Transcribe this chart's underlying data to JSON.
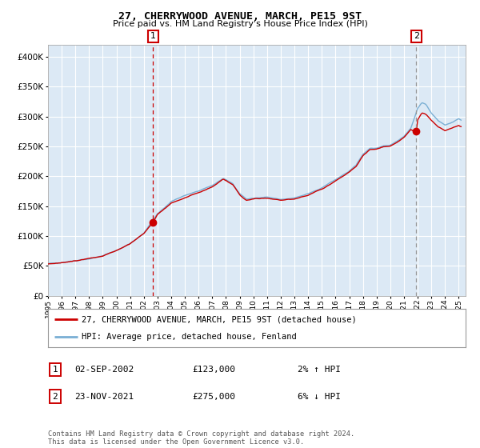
{
  "title": "27, CHERRYWOOD AVENUE, MARCH, PE15 9ST",
  "subtitle": "Price paid vs. HM Land Registry's House Price Index (HPI)",
  "legend_line1": "27, CHERRYWOOD AVENUE, MARCH, PE15 9ST (detached house)",
  "legend_line2": "HPI: Average price, detached house, Fenland",
  "annotation1_label": "1",
  "annotation1_date": "02-SEP-2002",
  "annotation1_price": "£123,000",
  "annotation1_hpi": "2% ↑ HPI",
  "annotation1_year": 2002.67,
  "annotation1_value": 123000,
  "annotation2_label": "2",
  "annotation2_date": "23-NOV-2021",
  "annotation2_price": "£275,000",
  "annotation2_hpi": "6% ↓ HPI",
  "annotation2_year": 2021.9,
  "annotation2_value": 275000,
  "red_color": "#cc0000",
  "blue_color": "#7aafd4",
  "bg_color": "#dce9f5",
  "grid_color": "#ffffff",
  "ylim": [
    0,
    420000
  ],
  "xlim": [
    1995.0,
    2025.5
  ],
  "footer": "Contains HM Land Registry data © Crown copyright and database right 2024.\nThis data is licensed under the Open Government Licence v3.0."
}
